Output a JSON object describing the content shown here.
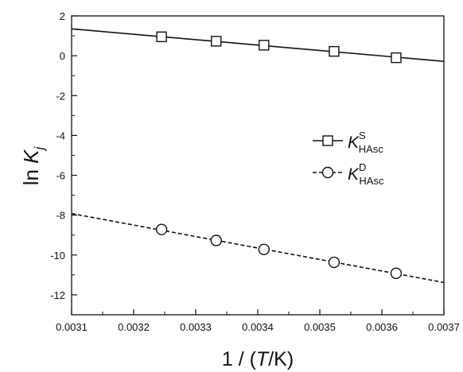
{
  "chart_data": {
    "type": "scatter",
    "xlabel": {
      "prefix": "1 / (",
      "var": "T",
      "suffix": "/K)"
    },
    "ylabel": {
      "prefix": "ln ",
      "var": "K",
      "sub": "j"
    },
    "xlim": [
      0.0031,
      0.0037
    ],
    "ylim": [
      -13,
      2
    ],
    "xticks": [
      0.0031,
      0.0032,
      0.0033,
      0.0034,
      0.0035,
      0.0036,
      0.0037
    ],
    "xtick_labels": [
      "0.0031",
      "0.0032",
      "0.0033",
      "0.0034",
      "0.0035",
      "0.0036",
      "0.0037"
    ],
    "yticks": [
      2,
      0,
      -2,
      -4,
      -6,
      -8,
      -10,
      -12
    ],
    "ytick_labels": [
      "2",
      "0",
      "-2",
      "-4",
      "-6",
      "-8",
      "-10",
      "-12"
    ],
    "grid": false,
    "legend_position": "right",
    "series": [
      {
        "legend": {
          "main": "K",
          "sup": "S",
          "sub": "HAsc"
        },
        "marker": "square",
        "line_style": "solid",
        "x": [
          0.003245,
          0.003333,
          0.00341,
          0.003523,
          0.003623
        ],
        "y": [
          0.95,
          0.73,
          0.53,
          0.22,
          -0.1
        ],
        "fit": {
          "x": [
            0.0031,
            0.0037
          ],
          "y": [
            1.35,
            -0.28
          ]
        }
      },
      {
        "legend": {
          "main": "K",
          "sup": "D",
          "sub": "HAsc"
        },
        "marker": "circle",
        "line_style": "dashed",
        "x": [
          0.003245,
          0.003333,
          0.00341,
          0.003523,
          0.003623
        ],
        "y": [
          -8.72,
          -9.27,
          -9.72,
          -10.37,
          -10.92
        ],
        "fit": {
          "x": [
            0.0031,
            0.0037
          ],
          "y": [
            -7.92,
            -11.38
          ]
        }
      }
    ]
  },
  "colors": {
    "ink": "#111111",
    "marker_fill": "#ffffff"
  }
}
